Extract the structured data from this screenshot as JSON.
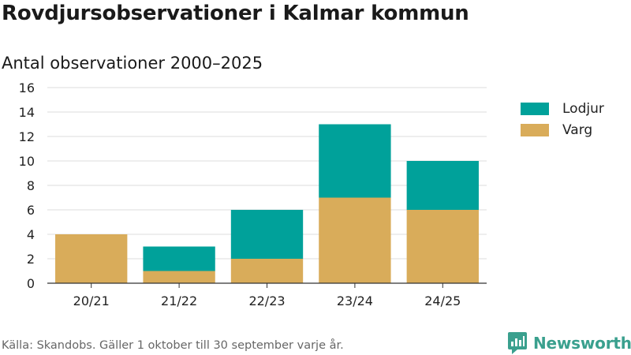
{
  "chart_data": {
    "type": "bar",
    "stacked": true,
    "title": "Rovdjursobservationer i Kalmar kommun",
    "subtitle": "Antal observationer 2000–2025",
    "categories": [
      "20/21",
      "21/22",
      "22/23",
      "23/24",
      "24/25"
    ],
    "series": [
      {
        "name": "Varg",
        "values": [
          4,
          1,
          2,
          7,
          6
        ],
        "color": "#d9ac5a"
      },
      {
        "name": "Lodjur",
        "values": [
          0,
          2,
          4,
          6,
          4
        ],
        "color": "#00a19a"
      }
    ],
    "ylim": [
      0,
      16
    ],
    "yticks": [
      0,
      2,
      4,
      6,
      8,
      10,
      12,
      14,
      16
    ],
    "grid": true,
    "legend_position": "right",
    "legend_order": [
      "Lodjur",
      "Varg"
    ]
  },
  "source": "Källa: Skandobs. Gäller 1 oktober till 30 september varje år.",
  "brand": {
    "name": "Newsworthy",
    "icon": "newsworthy-logo-icon",
    "color": "#3aa08e"
  }
}
